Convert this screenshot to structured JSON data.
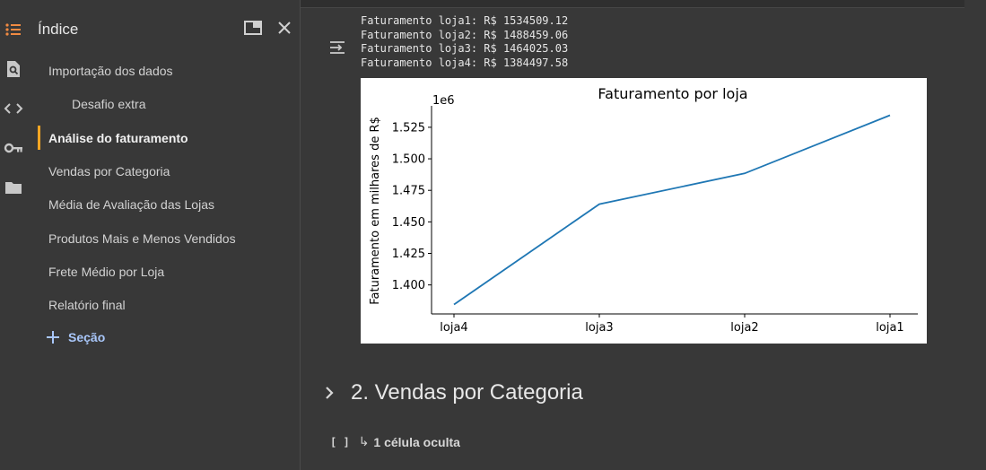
{
  "sidebar": {
    "title": "Índice",
    "toc": [
      {
        "label": "Importação dos dados",
        "level": 1,
        "active": false
      },
      {
        "label": "Desafio extra",
        "level": 2,
        "active": false
      },
      {
        "label": "Análise do faturamento",
        "level": 1,
        "active": true
      },
      {
        "label": "Vendas por Categoria",
        "level": 1,
        "active": false
      },
      {
        "label": "Média de Avaliação das Lojas",
        "level": 1,
        "active": false
      },
      {
        "label": "Produtos Mais e Menos Vendidos",
        "level": 1,
        "active": false
      },
      {
        "label": "Frete Médio por Loja",
        "level": 1,
        "active": false
      },
      {
        "label": "Relatório final",
        "level": 1,
        "active": false
      }
    ],
    "add_section_label": "Seção",
    "icons": [
      "toc-icon",
      "search-icon",
      "code-icon",
      "key-icon",
      "folder-icon"
    ]
  },
  "output": {
    "lines": [
      "Faturamento loja1: R$ 1534509.12",
      "Faturamento loja2: R$ 1488459.06",
      "Faturamento loja3: R$ 1464025.03",
      "Faturamento loja4: R$ 1384497.58"
    ]
  },
  "chart_data": {
    "type": "line",
    "title": "Faturamento por loja",
    "xlabel": "",
    "ylabel": "Faturamento em milhares de R$",
    "offset_label": "1e6",
    "categories": [
      "loja4",
      "loja3",
      "loja2",
      "loja1"
    ],
    "values": [
      1384497.58,
      1464025.03,
      1488459.06,
      1534509.12
    ],
    "yticks": [
      "1.400",
      "1.425",
      "1.450",
      "1.475",
      "1.500",
      "1.525"
    ],
    "ytick_values": [
      1400000,
      1425000,
      1450000,
      1475000,
      1500000,
      1525000
    ],
    "ylim": [
      1377000,
      1542000
    ],
    "line_color": "#1f77b4",
    "grid": false
  },
  "section_heading": "2. Vendas por Categoria",
  "hidden_cells": {
    "bracket": "[ ]",
    "label": "1 célula oculta"
  },
  "colors": {
    "background": "#383838",
    "active_accent": "#f6a623",
    "link": "#a9c7fa",
    "toc_icon": "#f28b42"
  }
}
